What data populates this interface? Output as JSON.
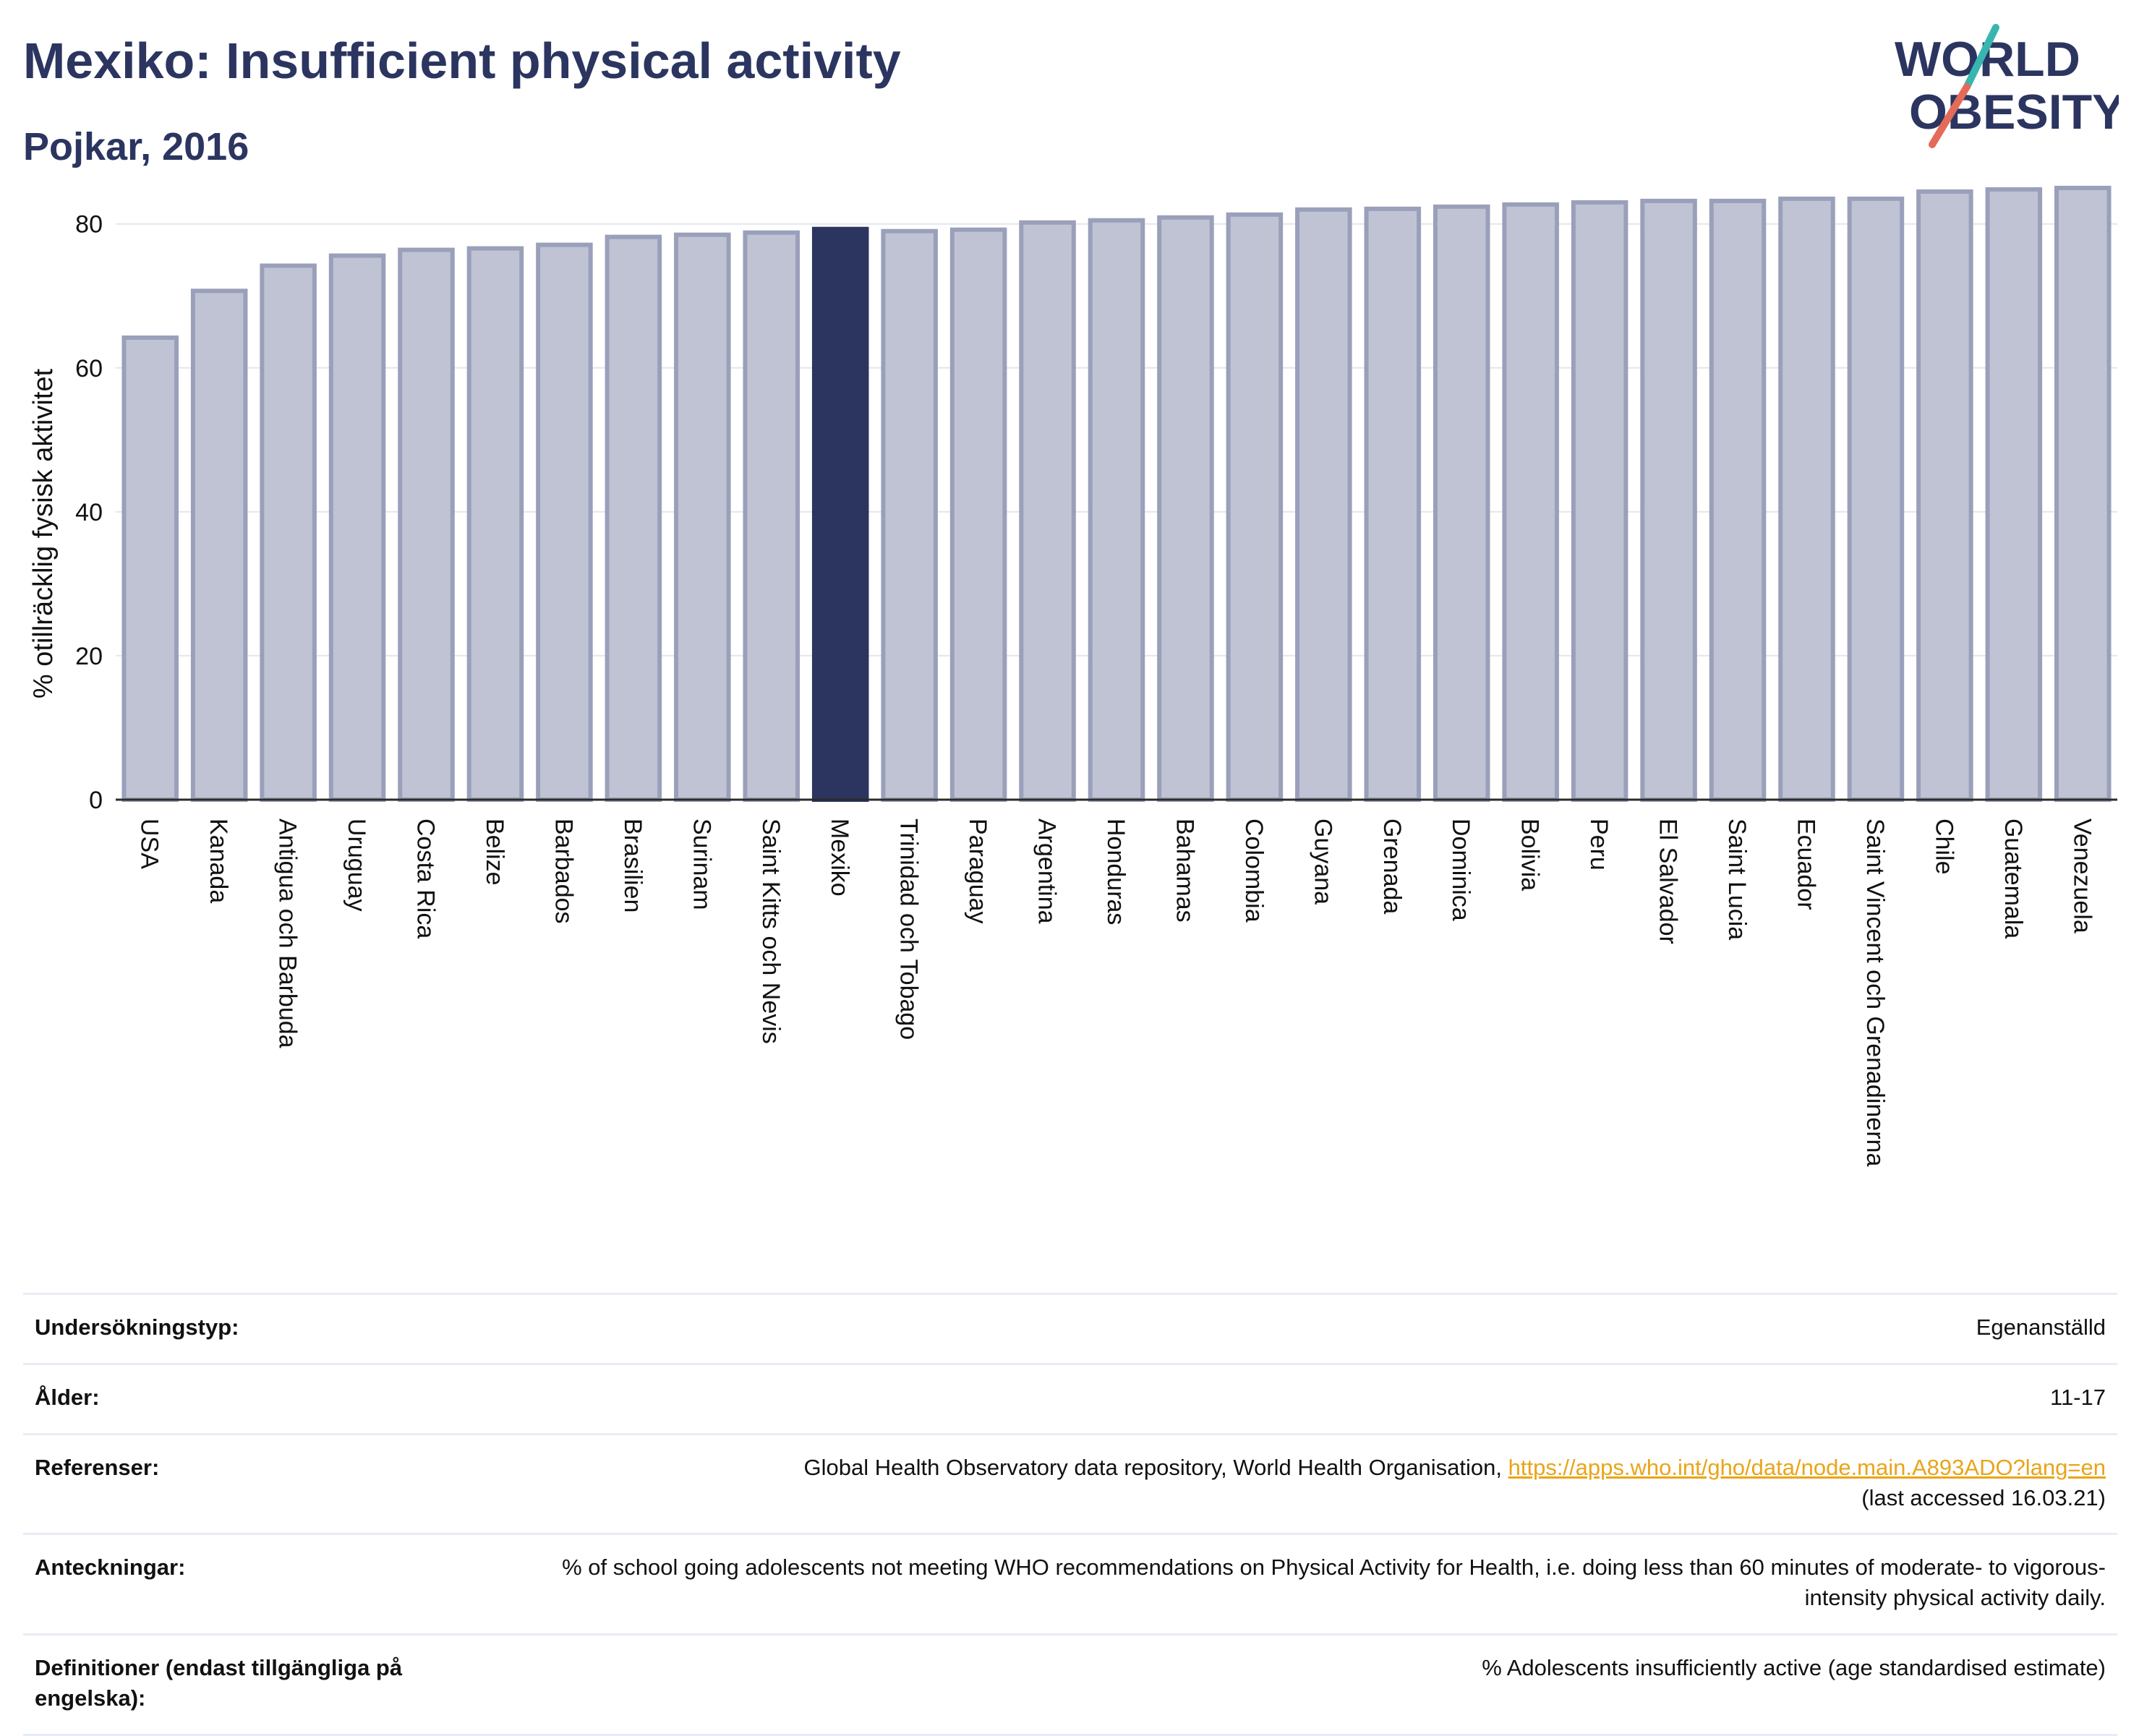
{
  "header": {
    "title": "Mexiko: Insufficient physical activity",
    "subtitle": "Pojkar, 2016",
    "logo_line1": "WORLD",
    "logo_line2": "OBESITY"
  },
  "chart_data": {
    "type": "bar",
    "ylabel": "% otillräcklig fysisk aktivitet",
    "ylim": [
      0,
      86
    ],
    "yticks": [
      0,
      20,
      40,
      60,
      80
    ],
    "grid": true,
    "highlight": "Mexiko",
    "categories": [
      "USA",
      "Kanada",
      "Antigua och Barbuda",
      "Uruguay",
      "Costa Rica",
      "Belize",
      "Barbados",
      "Brasilien",
      "Surinam",
      "Saint Kitts och Nevis",
      "Mexiko",
      "Trinidad och Tobago",
      "Paraguay",
      "Argentina",
      "Honduras",
      "Bahamas",
      "Colombia",
      "Guyana",
      "Grenada",
      "Dominica",
      "Bolivia",
      "Peru",
      "El Salvador",
      "Saint Lucia",
      "Ecuador",
      "Saint Vincent och Grenadinerna",
      "Chile",
      "Guatemala",
      "Venezuela"
    ],
    "values": [
      64.2,
      70.7,
      74.2,
      75.6,
      76.4,
      76.6,
      77.1,
      78.2,
      78.5,
      78.8,
      79.3,
      79.0,
      79.2,
      80.2,
      80.5,
      80.9,
      81.3,
      82.0,
      82.1,
      82.4,
      82.7,
      83.0,
      83.2,
      83.2,
      83.5,
      83.5,
      84.5,
      84.8,
      85.0
    ],
    "colors": {
      "bar": "#bfc3d3",
      "bar_border": "#9aa0ba",
      "highlight": "#2b3560"
    }
  },
  "info": [
    {
      "key": "Undersökningstyp:",
      "value": "Egenanställd"
    },
    {
      "key": "Ålder:",
      "value": "11-17"
    },
    {
      "key": "Referenser:",
      "value": "Global Health Observatory data repository, World Health Organisation, ",
      "link": "https://apps.who.int/gho/data/node.main.A893ADO?lang=en",
      "value_after": "(last accessed 16.03.21)"
    },
    {
      "key": "Anteckningar:",
      "value": "% of school going adolescents not meeting WHO recommendations on Physical Activity for Health, i.e. doing less than 60 minutes of moderate- to vigorous-intensity physical activity daily."
    },
    {
      "key": "Definitioner (endast tillgängliga på engelska):",
      "value": "% Adolescents insufficiently active (age standardised estimate)"
    }
  ]
}
